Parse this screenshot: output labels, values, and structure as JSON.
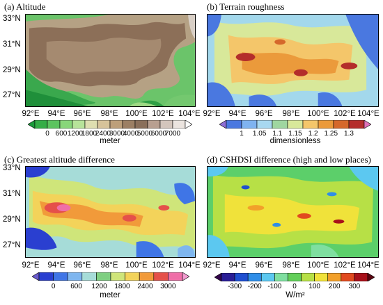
{
  "panels": [
    {
      "title": "(a) Altitude",
      "lat_labels": [
        "33°N",
        "31°N",
        "29°N",
        "27°N"
      ],
      "lon_labels": [
        "92°E",
        "94°E",
        "96°E",
        "98°E",
        "100°E",
        "102°E",
        "104°E"
      ],
      "colorbar": {
        "ticks": [
          "0",
          "600",
          "1200",
          "1800",
          "2400",
          "3000",
          "4000",
          "5000",
          "6000",
          "7000"
        ],
        "unit": "meter",
        "colors": [
          "#1a9a3a",
          "#34ad46",
          "#5cc45f",
          "#88d67a",
          "#b7e39a",
          "#dedeb0",
          "#d6c39a",
          "#bd9f7a",
          "#9c7f64",
          "#8a6f5a",
          "#b89f90",
          "#d3c5bc",
          "#ebe4df",
          "#ffffff"
        ]
      }
    },
    {
      "title": "(b) Terrain roughness",
      "lat_labels": [],
      "lon_labels": [
        "92°E",
        "94°E",
        "96°E",
        "98°E",
        "100°E",
        "102°E",
        "104°E"
      ],
      "colorbar": {
        "ticks": [
          "1",
          "1.05",
          "1.1",
          "1.15",
          "1.2",
          "1.25",
          "1.3"
        ],
        "unit": "dimensionless",
        "colors": [
          "#8e6fd6",
          "#4a78e0",
          "#7fb3f0",
          "#a8d8f0",
          "#9fd6a0",
          "#d8e89a",
          "#f4c66a",
          "#eb9a3b",
          "#d5682b",
          "#b42d2b",
          "#e070b8"
        ]
      }
    },
    {
      "title": "(c) Greatest altitude difference",
      "lat_labels": [
        "33°N",
        "31°N",
        "29°N",
        "27°N"
      ],
      "lon_labels": [
        "92°E",
        "94°E",
        "96°E",
        "98°E",
        "100°E",
        "102°E",
        "104°E"
      ],
      "colorbar": {
        "ticks": [
          "0",
          "600",
          "1200",
          "1800",
          "2400",
          "3000"
        ],
        "unit": "meter",
        "colors": [
          "#6a5acd",
          "#2a3fd0",
          "#3f75e6",
          "#7fb6ef",
          "#a6dcd8",
          "#7fcf82",
          "#cfe57a",
          "#f3d35a",
          "#f19a3a",
          "#e5504a",
          "#ef6fa8",
          "#f29cd0"
        ]
      }
    },
    {
      "title": "(d) CSHDSI difference (high and low places)",
      "lat_labels": [],
      "lon_labels": [
        "92°E",
        "94°E",
        "96°E",
        "98°E",
        "100°E",
        "102°E",
        "104°E"
      ],
      "colorbar": {
        "ticks": [
          "-300",
          "-200",
          "-100",
          "0",
          "100",
          "200",
          "300"
        ],
        "unit": "W/m²",
        "colors": [
          "#33054a",
          "#2a1e96",
          "#1f4fd0",
          "#2f8ee8",
          "#5cc8f0",
          "#7fdfa0",
          "#63cf5a",
          "#b7e046",
          "#f0e23a",
          "#f2a02a",
          "#e14a1f",
          "#a8101a",
          "#5a0612"
        ]
      }
    }
  ]
}
